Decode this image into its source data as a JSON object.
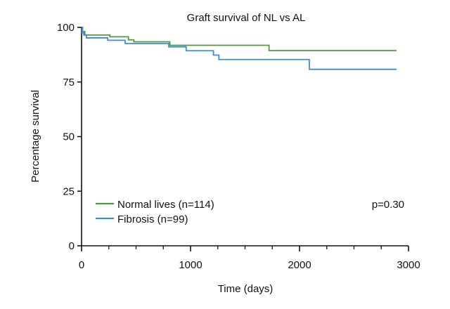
{
  "chart_data": {
    "type": "line",
    "title": "Graft survival of NL vs AL",
    "xlabel": "Time (days)",
    "ylabel": "Percentage survival",
    "xlim": [
      0,
      3000
    ],
    "ylim": [
      0,
      100
    ],
    "xticks": [
      0,
      1000,
      2000,
      3000
    ],
    "xticks_minor": [
      250,
      500,
      750,
      1250,
      1500,
      1750,
      2250,
      2500,
      2750
    ],
    "yticks": [
      0,
      25,
      50,
      75,
      100
    ],
    "grid": false,
    "legend_position": "bottom-left",
    "annotation": "p=0.30",
    "series": [
      {
        "name": "Normal lives (n=114)",
        "color": "#4f9a3a",
        "style": "step",
        "x": [
          0,
          10,
          30,
          260,
          430,
          480,
          810,
          1720,
          2890
        ],
        "y": [
          100,
          98.1,
          96.5,
          95.7,
          94.3,
          93.4,
          91.8,
          89.4,
          89.4
        ]
      },
      {
        "name": "Fibrosis (n=99)",
        "color": "#3a8fd4",
        "style": "step",
        "x": [
          0,
          5,
          20,
          45,
          240,
          400,
          800,
          960,
          1210,
          1260,
          2090,
          2890
        ],
        "y": [
          100,
          97.5,
          96.5,
          95.2,
          94.1,
          92.6,
          91.1,
          89.3,
          87.3,
          85.3,
          80.8,
          80.8
        ]
      }
    ]
  }
}
